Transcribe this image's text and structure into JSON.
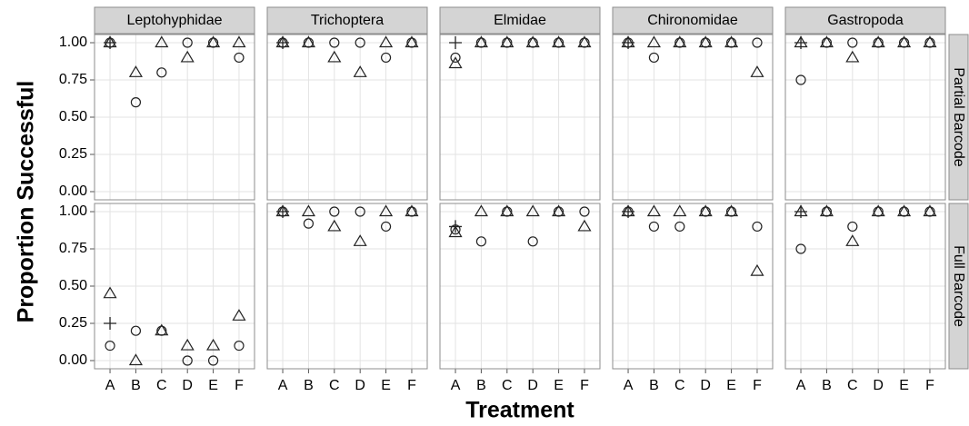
{
  "chart_data": {
    "type": "scatter",
    "ylabel": "Proportion Successful",
    "xlabel": "Treatment",
    "categories": [
      "A",
      "B",
      "C",
      "D",
      "E",
      "F"
    ],
    "columns": [
      "Leptohyphidae",
      "Trichoptera",
      "Elmidae",
      "Chironomidae",
      "Gastropoda"
    ],
    "ylim": [
      -0.055,
      1.055
    ],
    "yticks": [
      {
        "value": 0,
        "label": "0.00"
      },
      {
        "value": 0.25,
        "label": "0.25"
      },
      {
        "value": 0.5,
        "label": "0.50"
      },
      {
        "value": 0.75,
        "label": "0.75"
      },
      {
        "value": 1,
        "label": "1.00"
      }
    ],
    "grid": true,
    "rows": [
      {
        "label": "Partial Barcode",
        "panels": [
          {
            "series": [
              {
                "marker": "circle",
                "color": "#222222",
                "values": [
                  1,
                  0.6,
                  0.8,
                  1,
                  1,
                  0.9
                ]
              },
              {
                "marker": "triangle",
                "color": "#222222",
                "values": [
                  1,
                  0.8,
                  1,
                  0.9,
                  1,
                  1
                ]
              },
              {
                "marker": "plus",
                "color": "#222222",
                "values": [
                  1,
                  null,
                  null,
                  null,
                  null,
                  null
                ]
              }
            ]
          },
          {
            "series": [
              {
                "marker": "circle",
                "color": "#222222",
                "values": [
                  1,
                  1,
                  1,
                  1,
                  0.9,
                  1
                ]
              },
              {
                "marker": "triangle",
                "color": "#222222",
                "values": [
                  1,
                  1,
                  0.9,
                  0.8,
                  1,
                  1
                ]
              },
              {
                "marker": "plus",
                "color": "#222222",
                "values": [
                  1,
                  null,
                  null,
                  null,
                  null,
                  null
                ]
              }
            ]
          },
          {
            "series": [
              {
                "marker": "circle",
                "color": "#222222",
                "values": [
                  0.9,
                  1,
                  1,
                  1,
                  1,
                  1
                ]
              },
              {
                "marker": "triangle",
                "color": "#222222",
                "values": [
                  0.86,
                  1,
                  1,
                  1,
                  1,
                  1
                ]
              },
              {
                "marker": "plus",
                "color": "#222222",
                "values": [
                  1,
                  null,
                  null,
                  null,
                  null,
                  null
                ]
              }
            ]
          },
          {
            "series": [
              {
                "marker": "circle",
                "color": "#222222",
                "values": [
                  1,
                  0.9,
                  1,
                  1,
                  1,
                  1
                ]
              },
              {
                "marker": "triangle",
                "color": "#222222",
                "values": [
                  1,
                  1,
                  1,
                  1,
                  1,
                  0.8
                ]
              },
              {
                "marker": "plus",
                "color": "#222222",
                "values": [
                  1,
                  null,
                  null,
                  null,
                  null,
                  null
                ]
              }
            ]
          },
          {
            "series": [
              {
                "marker": "circle",
                "color": "#222222",
                "values": [
                  0.75,
                  1,
                  1,
                  1,
                  1,
                  1
                ]
              },
              {
                "marker": "triangle",
                "color": "#222222",
                "values": [
                  1,
                  1,
                  0.9,
                  1,
                  1,
                  1
                ]
              },
              {
                "marker": "plus",
                "color": "#222222",
                "values": [
                  1,
                  null,
                  null,
                  null,
                  null,
                  null
                ]
              }
            ]
          }
        ]
      },
      {
        "label": "Full Barcode",
        "panels": [
          {
            "series": [
              {
                "marker": "circle",
                "color": "#222222",
                "values": [
                  0.1,
                  0.2,
                  0.2,
                  0,
                  0,
                  0.1
                ]
              },
              {
                "marker": "triangle",
                "color": "#222222",
                "values": [
                  0.45,
                  0,
                  0.2,
                  0.1,
                  0.1,
                  0.3
                ]
              },
              {
                "marker": "plus",
                "color": "#222222",
                "values": [
                  0.25,
                  null,
                  null,
                  null,
                  null,
                  null
                ]
              }
            ]
          },
          {
            "series": [
              {
                "marker": "circle",
                "color": "#222222",
                "values": [
                  1,
                  0.92,
                  1,
                  1,
                  0.9,
                  1
                ]
              },
              {
                "marker": "triangle",
                "color": "#222222",
                "values": [
                  1,
                  1,
                  0.9,
                  0.8,
                  1,
                  1
                ]
              },
              {
                "marker": "plus",
                "color": "#222222",
                "values": [
                  1,
                  null,
                  null,
                  null,
                  null,
                  null
                ]
              }
            ]
          },
          {
            "series": [
              {
                "marker": "circle",
                "color": "#222222",
                "values": [
                  0.88,
                  0.8,
                  1,
                  0.8,
                  1,
                  1
                ]
              },
              {
                "marker": "triangle",
                "color": "#222222",
                "values": [
                  0.86,
                  1,
                  1,
                  1,
                  1,
                  0.9
                ]
              },
              {
                "marker": "plus",
                "color": "#222222",
                "values": [
                  0.9,
                  null,
                  null,
                  null,
                  null,
                  null
                ]
              }
            ]
          },
          {
            "series": [
              {
                "marker": "circle",
                "color": "#222222",
                "values": [
                  1,
                  0.9,
                  0.9,
                  1,
                  1,
                  0.9
                ]
              },
              {
                "marker": "triangle",
                "color": "#222222",
                "values": [
                  1,
                  1,
                  1,
                  1,
                  1,
                  0.6
                ]
              },
              {
                "marker": "plus",
                "color": "#222222",
                "values": [
                  1,
                  null,
                  null,
                  null,
                  null,
                  null
                ]
              }
            ]
          },
          {
            "series": [
              {
                "marker": "circle",
                "color": "#222222",
                "values": [
                  0.75,
                  1,
                  0.9,
                  1,
                  1,
                  1
                ]
              },
              {
                "marker": "triangle",
                "color": "#222222",
                "values": [
                  1,
                  1,
                  0.8,
                  1,
                  1,
                  1
                ]
              },
              {
                "marker": "plus",
                "color": "#222222",
                "values": [
                  1,
                  null,
                  null,
                  null,
                  null,
                  null
                ]
              }
            ]
          }
        ]
      }
    ]
  }
}
